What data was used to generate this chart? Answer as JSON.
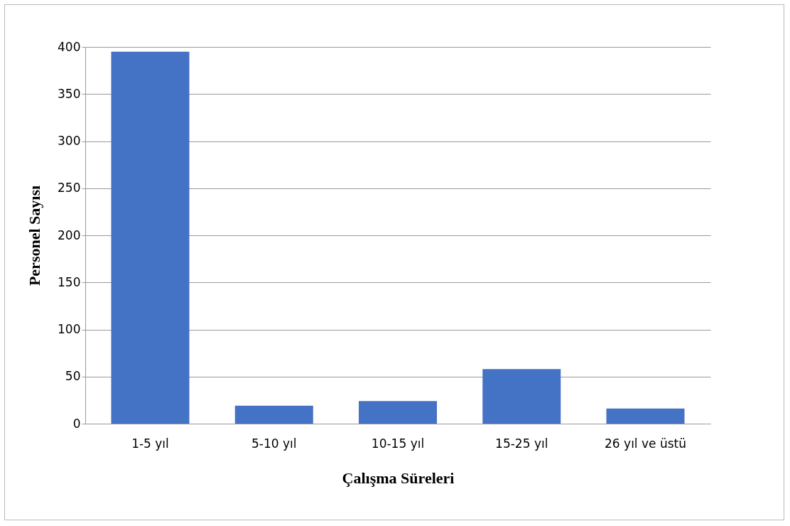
{
  "chart_data": {
    "type": "bar",
    "xlabel": "Çalışma Süreleri",
    "ylabel": "Personel Sayısı",
    "categories": [
      "1-5 yıl",
      "5-10 yıl",
      "10-15 yıl",
      "15-25 yıl",
      "26 yıl ve üstü"
    ],
    "values": [
      395,
      19,
      24,
      58,
      16
    ],
    "color": "#4472c4",
    "ylim": [
      0,
      400
    ],
    "yticks": [
      0,
      50,
      100,
      150,
      200,
      250,
      300,
      350,
      400
    ],
    "grid": "y"
  }
}
